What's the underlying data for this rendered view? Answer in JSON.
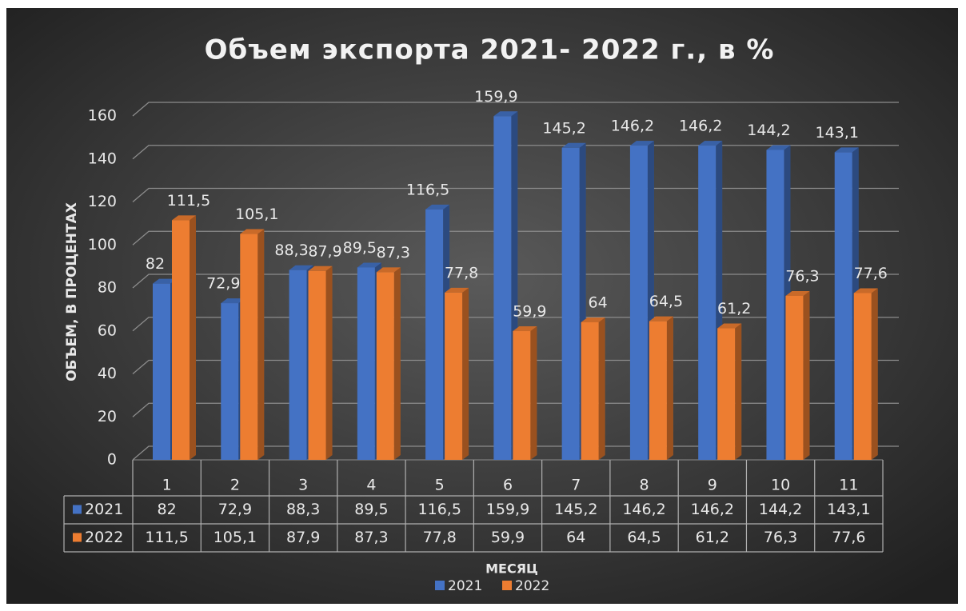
{
  "chart_data": {
    "type": "bar3d",
    "title": "Объем экспорта 2021- 2022 г., в %",
    "y_label": "ОБЪЕМ, В ПРОЦЕНТАХ",
    "x_label": "МЕСЯЦ",
    "categories": [
      "1",
      "2",
      "3",
      "4",
      "5",
      "6",
      "7",
      "8",
      "9",
      "10",
      "11"
    ],
    "series": [
      {
        "name": "2021",
        "color": "#4472c4",
        "values": [
          82,
          72.9,
          88.3,
          89.5,
          116.5,
          159.9,
          145.2,
          146.2,
          146.2,
          144.2,
          143.1
        ],
        "value_labels": [
          "82",
          "72,9",
          "88,3",
          "89,5",
          "116,5",
          "159,9",
          "145,2",
          "146,2",
          "146,2",
          "144,2",
          "143,1"
        ]
      },
      {
        "name": "2022",
        "color": "#ed7d31",
        "values": [
          111.5,
          105.1,
          87.9,
          87.3,
          77.8,
          59.9,
          64,
          64.5,
          61.2,
          76.3,
          77.6
        ],
        "value_labels": [
          "111,5",
          "105,1",
          "87,9",
          "87,3",
          "77,8",
          "59,9",
          "64",
          "64,5",
          "61,2",
          "76,3",
          "77,6"
        ]
      }
    ],
    "ylim": [
      0,
      160
    ],
    "yticks": [
      0,
      20,
      40,
      60,
      80,
      100,
      120,
      140,
      160
    ],
    "grid": true,
    "data_table": true
  }
}
